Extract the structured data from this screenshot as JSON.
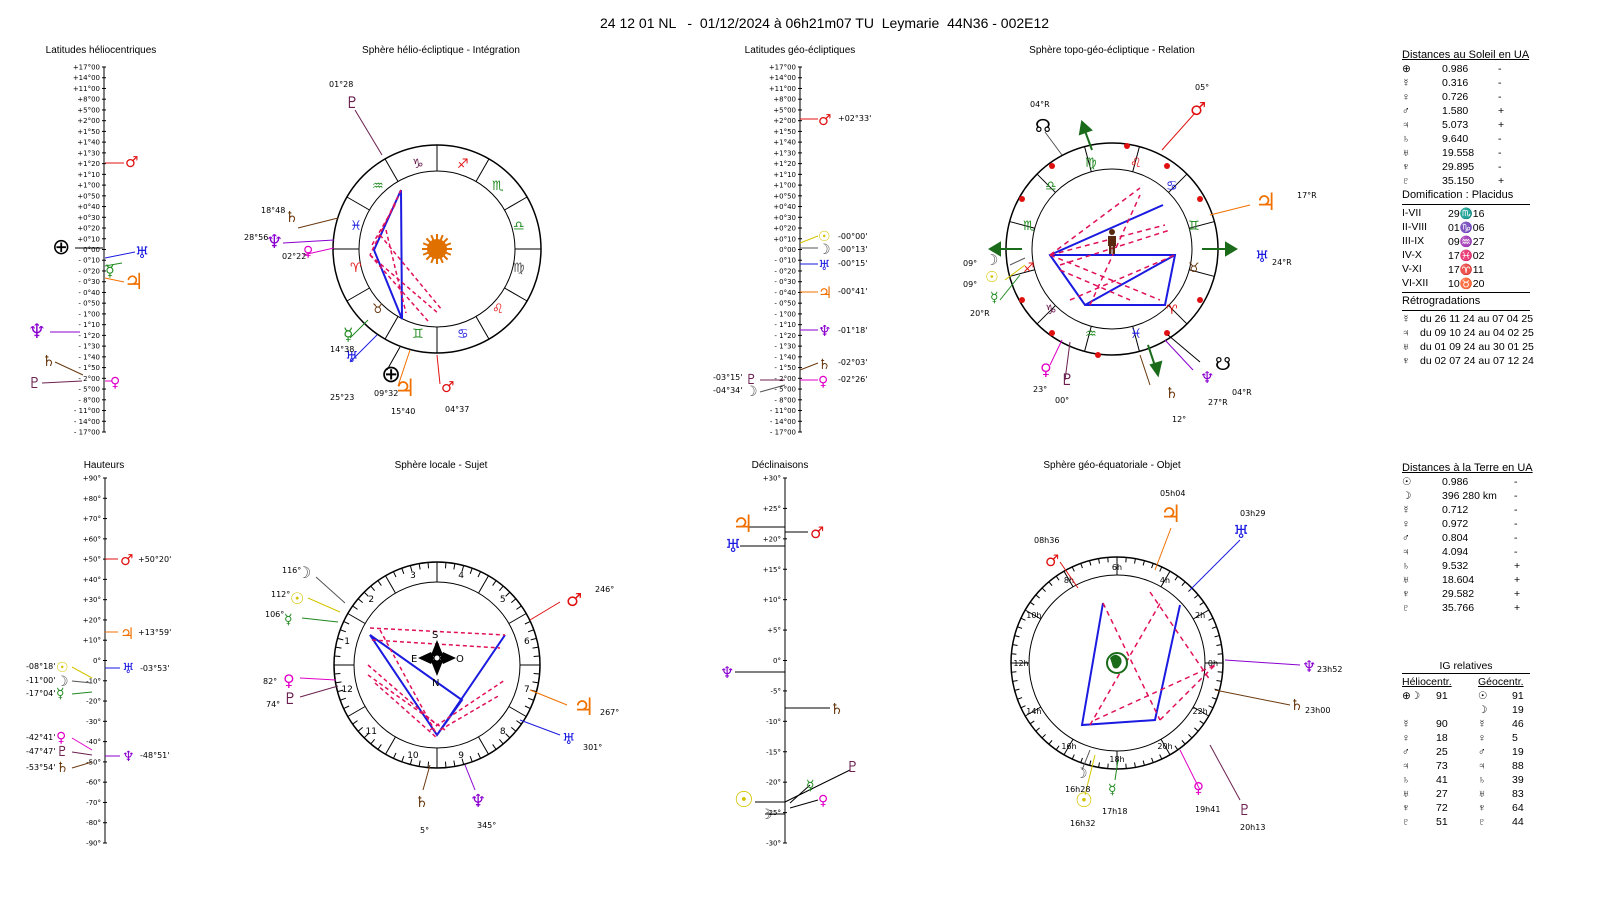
{
  "title": "24 12 01 NL   -  01/12/2024 à 06h21m07 TU  Leymarie  44N36 - 002E12",
  "panels": {
    "helio_lat": "Latitudes héliocentriques",
    "helio_sphere": "Sphère hélio-écliptique - Intégration",
    "geo_lat": "Latitudes géo-écliptiques",
    "topo_sphere": "Sphère topo-géo-écliptique - Relation",
    "heights": "Hauteurs",
    "local_sphere": "Sphère locale - Sujet",
    "declinations": "Déclinaisons",
    "equatorial_sphere": "Sphère géo-équatoriale - Objet"
  },
  "colors": {
    "sun": "#d4c400",
    "moon": "#555555",
    "mercury": "#1f8a1f",
    "venus": "#e000c8",
    "mars": "#e01010",
    "jupiter": "#f07000",
    "saturn": "#6b3a10",
    "uranus": "#1a1ae0",
    "neptune": "#8a00d0",
    "pluto": "#6b2050",
    "earth": "#000000",
    "aspect_hard": "#1a1ae0",
    "aspect_soft": "#e0105a",
    "green_arrow": "#1a6b1a"
  },
  "lat_scale_labels": [
    "+17°00",
    "+14°00",
    "+11°00",
    "+8°00",
    "+5°00",
    "+2°00",
    "+1°50",
    "+1°40",
    "+1°30",
    "+1°20",
    "+1°10",
    "+1°00",
    "+0°50",
    "+0°40",
    "+0°30",
    "+0°20",
    "+0°10",
    "0°00",
    "- 0°10",
    "- 0°20",
    "- 0°30",
    "- 0°40",
    "- 0°50",
    "- 1°00",
    "- 1°10",
    "- 1°20",
    "- 1°30",
    "- 1°40",
    "- 1°50",
    "- 2°00",
    "- 5°00",
    "- 8°00",
    "- 11°00",
    "- 14°00",
    "- 17°00"
  ],
  "geo_lat_labels": {
    "mars": "+02°33'",
    "sun": "-00°00'",
    "moon_top": "-00°13'",
    "uranus": "-00°15'",
    "jupiter": "-00°41'",
    "neptune": "-01°18'",
    "saturn": "-02°03'",
    "venus": "-02°26'",
    "pluto": "-03°15'",
    "moon": "-04°34'"
  },
  "height_scale_labels": [
    "+90°",
    "+80°",
    "+70°",
    "+60°",
    "+50°",
    "+40°",
    "+30°",
    "+20°",
    "+10°",
    "0°",
    "-10°",
    "-20°",
    "-30°",
    "-40°",
    "-50°",
    "-60°",
    "-70°",
    "-80°",
    "-90°"
  ],
  "height_labels": {
    "mars": "+50°20'",
    "jupiter": "+13°59'",
    "sun": "-08°18'",
    "moon": "-11°00'",
    "mercury": "-17°04'",
    "uranus": "-03°53'",
    "venus": "-42°41'",
    "pluto": "-47°47'",
    "saturn": "-53°54'",
    "neptune": "-48°51'"
  },
  "decl_scale_labels": [
    "+30°",
    "+25°",
    "+20°",
    "+15°",
    "+10°",
    "+5°",
    "0°",
    "-5°",
    "-10°",
    "-15°",
    "-20°",
    "-25°",
    "-30°"
  ],
  "helio_sphere_labels": {
    "pluto": "01°28",
    "saturn": "18°48",
    "neptune": "28°56",
    "venus": "02°22",
    "mercury": "14°38",
    "uranus": "25°23",
    "earth": "09°32",
    "jupiter": "15°40",
    "mars": "04°37"
  },
  "topo_labels": {
    "node": "04°R",
    "mars": "05°",
    "jupiter": "17°R",
    "uranus": "24°R",
    "moon": "09°",
    "sun": "09°",
    "mercury": "20°R",
    "venus": "23°",
    "pluto": "00°",
    "saturn": "12°",
    "neptune": "27°R",
    "south_node": "04°R"
  },
  "local_labels": {
    "moon": "116°",
    "sun": "112°",
    "mercury": "106°",
    "venus": "82°",
    "pluto": "74°",
    "mars": "246°",
    "jupiter": "267°",
    "uranus": "301°",
    "saturn": "5°",
    "neptune": "345°"
  },
  "local_houses": [
    "12",
    "11",
    "10",
    "9",
    "8",
    "7",
    "6",
    "5",
    "4",
    "3",
    "2",
    "1"
  ],
  "compass": {
    "n": "N",
    "s": "S",
    "e": "E",
    "w": "O"
  },
  "eq_labels": {
    "jupiter": "05h04",
    "uranus": "03h29",
    "mars": "08h36",
    "neptune": "23h52",
    "saturn": "23h00",
    "pluto": "20h13",
    "venus": "19h41",
    "mercury": "17h18",
    "moon": "16h28",
    "sun": "16h32"
  },
  "eq_hours": [
    "6h",
    "4h",
    "2h",
    "0h",
    "22h",
    "20h",
    "18h",
    "16h",
    "14h",
    "12h",
    "10h",
    "8h"
  ],
  "right_panel": {
    "sun_dist_title": "Distances au Soleil en UA",
    "sun_dist": [
      {
        "glyph": "⊕",
        "value": "0.986",
        "sign": "-"
      },
      {
        "glyph": "☿",
        "value": "0.316",
        "sign": "-"
      },
      {
        "glyph": "♀",
        "value": "0.726",
        "sign": "-"
      },
      {
        "glyph": "♂",
        "value": "1.580",
        "sign": "+"
      },
      {
        "glyph": "♃",
        "value": "5.073",
        "sign": "+"
      },
      {
        "glyph": "♄",
        "value": "9.640",
        "sign": "-"
      },
      {
        "glyph": "♅",
        "value": "19.558",
        "sign": "-"
      },
      {
        "glyph": "♆",
        "value": "29.895",
        "sign": "-"
      },
      {
        "glyph": "♇",
        "value": "35.150",
        "sign": "+"
      }
    ],
    "houses_title": "Domification : Placidus",
    "houses": [
      {
        "name": "I-VII",
        "value": "29♏16"
      },
      {
        "name": "II-VIII",
        "value": "01♑06"
      },
      {
        "name": "III-IX",
        "value": "09♒27"
      },
      {
        "name": "IV-X",
        "value": "17♓02"
      },
      {
        "name": "V-XI",
        "value": "17♈11"
      },
      {
        "name": "VI-XII",
        "value": "10♉20"
      }
    ],
    "retro_title": "Rétrogradations",
    "retro": [
      {
        "glyph": "☿",
        "text": "du 26 11 24 au 07 04 25"
      },
      {
        "glyph": "♃",
        "text": "du 09 10 24 au 04 02 25"
      },
      {
        "glyph": "♅",
        "text": "du 01 09 24 au 30 01 25"
      },
      {
        "glyph": "♆",
        "text": "du 02 07 24 au 07 12 24"
      }
    ],
    "earth_dist_title": "Distances à la Terre en UA",
    "earth_dist": [
      {
        "glyph": "☉",
        "value": "0.986",
        "sign": "-"
      },
      {
        "glyph": "☽",
        "value": "396 280 km",
        "sign": "-"
      },
      {
        "glyph": "☿",
        "value": "0.712",
        "sign": "-"
      },
      {
        "glyph": "♀",
        "value": "0.972",
        "sign": "-"
      },
      {
        "glyph": "♂",
        "value": "0.804",
        "sign": "-"
      },
      {
        "glyph": "♃",
        "value": "4.094",
        "sign": "-"
      },
      {
        "glyph": "♄",
        "value": "9.532",
        "sign": "+"
      },
      {
        "glyph": "♅",
        "value": "18.604",
        "sign": "+"
      },
      {
        "glyph": "♆",
        "value": "29.582",
        "sign": "+"
      },
      {
        "glyph": "♇",
        "value": "35.766",
        "sign": "+"
      }
    ],
    "ig_title": "IG relatives",
    "ig_helio": "Héliocentr.",
    "ig_geo": "Géocentr.",
    "ig_rows": [
      {
        "hg": "⊕☽",
        "hv": "91",
        "gg": "☉",
        "gv": "91"
      },
      {
        "hg": "",
        "hv": "",
        "gg": "☽",
        "gv": "19"
      },
      {
        "hg": "☿",
        "hv": "90",
        "gg": "☿",
        "gv": "46"
      },
      {
        "hg": "♀",
        "hv": "18",
        "gg": "♀",
        "gv": "5"
      },
      {
        "hg": "♂",
        "hv": "25",
        "gg": "♂",
        "gv": "19"
      },
      {
        "hg": "♃",
        "hv": "73",
        "gg": "♃",
        "gv": "88"
      },
      {
        "hg": "♄",
        "hv": "41",
        "gg": "♄",
        "gv": "39"
      },
      {
        "hg": "♅",
        "hv": "27",
        "gg": "♅",
        "gv": "83"
      },
      {
        "hg": "♆",
        "hv": "72",
        "gg": "♆",
        "gv": "64"
      },
      {
        "hg": "♇",
        "hv": "51",
        "gg": "♇",
        "gv": "44"
      }
    ]
  }
}
